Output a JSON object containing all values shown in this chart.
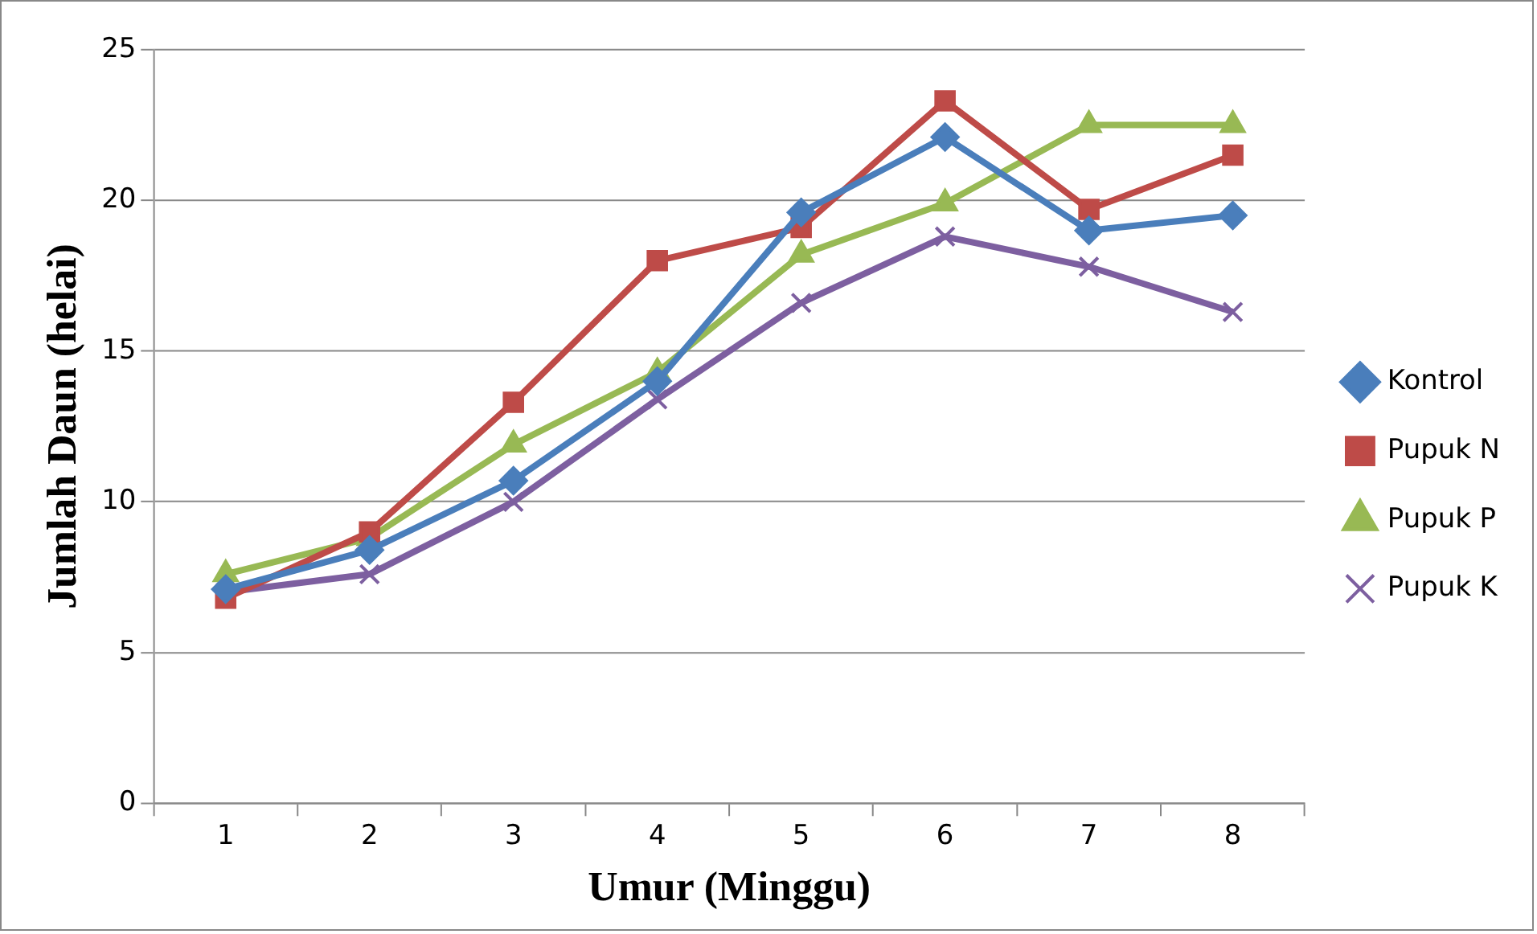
{
  "chart_data": {
    "type": "line",
    "xlabel": "Umur (Minggu)",
    "ylabel": "Jumlah Daun (helai)",
    "categories": [
      "1",
      "2",
      "3",
      "4",
      "5",
      "6",
      "7",
      "8"
    ],
    "ylim": [
      0,
      25
    ],
    "yticks": [
      0,
      5,
      10,
      15,
      20,
      25
    ],
    "grid": "y",
    "legend": "right",
    "line_style": "solid",
    "series": [
      {
        "name": "Kontrol",
        "color": "#4a7ebb",
        "marker": "diamond",
        "values": [
          7.1,
          8.4,
          10.7,
          14.0,
          19.6,
          22.1,
          19.0,
          19.5
        ]
      },
      {
        "name": "Pupuk N",
        "color": "#be4b48",
        "marker": "square",
        "values": [
          6.8,
          9.0,
          13.3,
          18.0,
          19.1,
          23.3,
          19.7,
          21.5
        ]
      },
      {
        "name": "Pupuk P",
        "color": "#98b954",
        "marker": "triangle",
        "values": [
          7.6,
          8.8,
          11.9,
          14.3,
          18.2,
          19.9,
          22.5,
          22.5
        ]
      },
      {
        "name": "Pupuk K",
        "color": "#7d5fa0",
        "marker": "cross",
        "values": [
          7.0,
          7.6,
          10.0,
          13.4,
          16.6,
          18.8,
          17.8,
          16.3
        ]
      }
    ]
  }
}
